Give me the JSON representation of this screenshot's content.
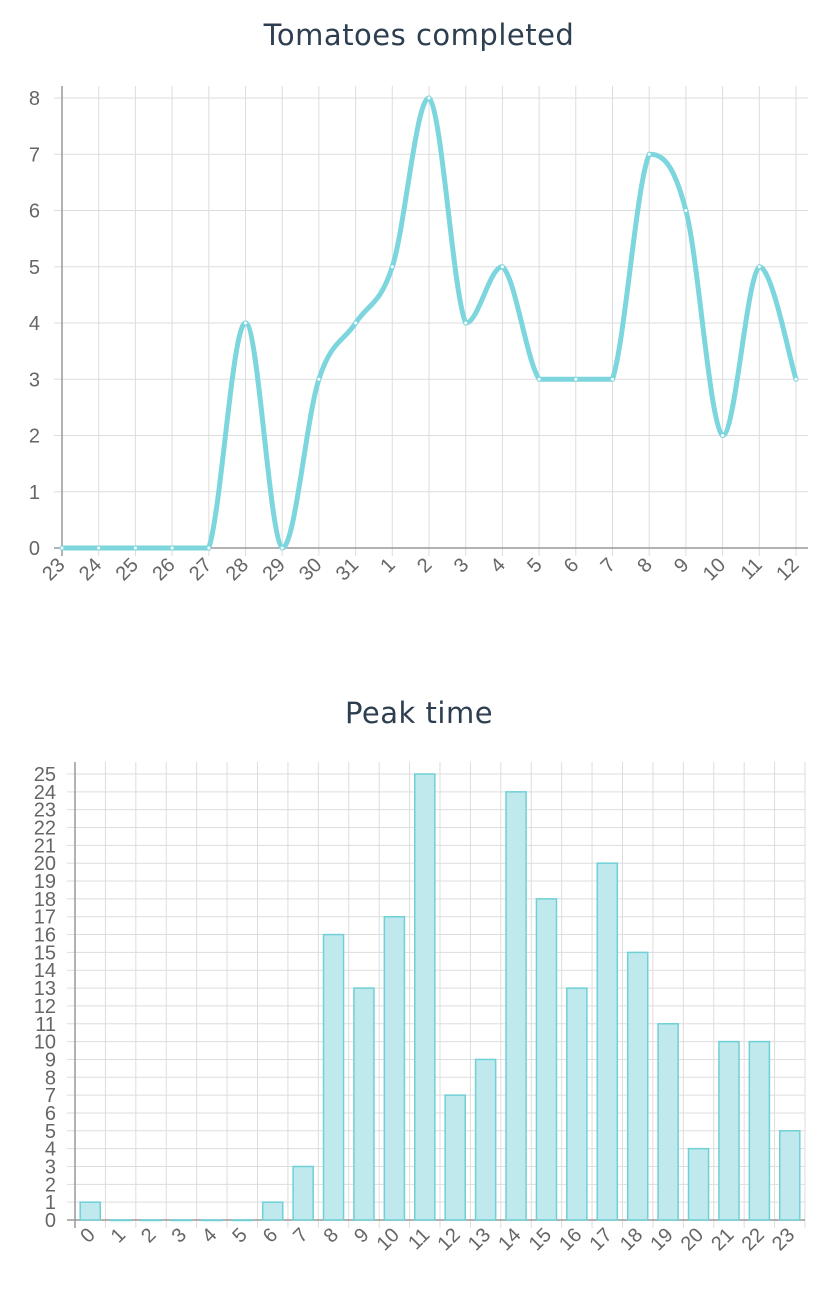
{
  "colors": {
    "line": "#7dd6dd",
    "bar_fill": "#bfe9ec",
    "bar_stroke": "#6fd0d6",
    "grid": "#dddddd",
    "axis": "#999999",
    "title": "#2c3e50",
    "tick": "#666666"
  },
  "chart_data": [
    {
      "type": "line",
      "title": "Tomatoes completed",
      "categories": [
        "23",
        "24",
        "25",
        "26",
        "27",
        "28",
        "29",
        "30",
        "31",
        "1",
        "2",
        "3",
        "4",
        "5",
        "6",
        "7",
        "8",
        "9",
        "10",
        "11",
        "12"
      ],
      "values": [
        0,
        0,
        0,
        0,
        0,
        4,
        0,
        3,
        4,
        5,
        8,
        4,
        5,
        3,
        3,
        3,
        7,
        6,
        2,
        5,
        3
      ],
      "xlabel": "",
      "ylabel": "",
      "ylim": [
        0,
        8
      ],
      "yticks": [
        "0",
        "1",
        "2",
        "3",
        "4",
        "5",
        "6",
        "7",
        "8"
      ],
      "grid": true,
      "legend": "none"
    },
    {
      "type": "bar",
      "title": "Peak time",
      "categories": [
        "0",
        "1",
        "2",
        "3",
        "4",
        "5",
        "6",
        "7",
        "8",
        "9",
        "10",
        "11",
        "12",
        "13",
        "14",
        "15",
        "16",
        "17",
        "18",
        "19",
        "20",
        "21",
        "22",
        "23"
      ],
      "values": [
        1,
        0,
        0,
        0,
        0,
        0,
        1,
        3,
        16,
        13,
        17,
        25,
        7,
        9,
        24,
        18,
        13,
        20,
        15,
        11,
        4,
        10,
        10,
        5
      ],
      "xlabel": "",
      "ylabel": "",
      "ylim": [
        0,
        25
      ],
      "yticks": [
        "0",
        "1",
        "2",
        "3",
        "4",
        "5",
        "6",
        "7",
        "8",
        "9",
        "10",
        "11",
        "12",
        "13",
        "14",
        "15",
        "16",
        "17",
        "18",
        "19",
        "20",
        "21",
        "22",
        "23",
        "24",
        "25"
      ],
      "grid": true,
      "legend": "none"
    }
  ]
}
